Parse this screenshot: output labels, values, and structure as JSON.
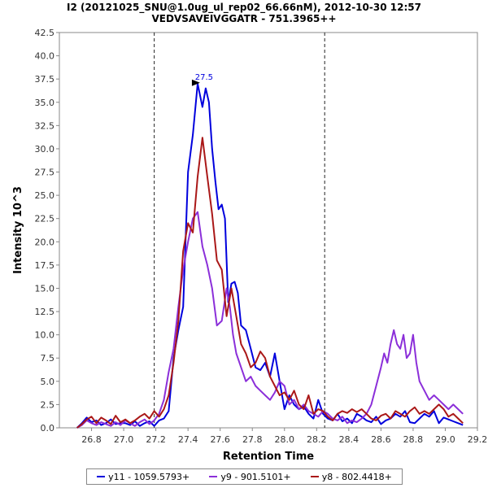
{
  "chart_data": {
    "type": "line",
    "title": "I2 (20121025_SNU@1.0ug_ul_rep02_66.66nM), 2012-10-30 12:57",
    "subtitle": "VEDVSAVEIVGGATR - 751.3965++",
    "xlabel": "Retention Time",
    "ylabel": "Intensity 10^3",
    "xlim": [
      26.6,
      29.2
    ],
    "ylim": [
      0,
      42.5
    ],
    "xticks": [
      "26.8",
      "27.0",
      "27.2",
      "27.4",
      "27.6",
      "27.8",
      "28.0",
      "28.2",
      "28.4",
      "28.6",
      "28.8",
      "29.0",
      "29.2"
    ],
    "yticks": [
      "0.0",
      "2.5",
      "5.0",
      "7.5",
      "10.0",
      "12.5",
      "15.0",
      "17.5",
      "20.0",
      "22.5",
      "25.0",
      "27.5",
      "30.0",
      "32.5",
      "35.0",
      "37.5",
      "40.0",
      "42.5"
    ],
    "boundaries": [
      27.19,
      28.25
    ],
    "peak_label": {
      "text": "27.5",
      "x": 27.5,
      "y": 37.1,
      "color": "#0000dd"
    },
    "series": [
      {
        "name": "y11 - 1059.5793+",
        "color": "#0000dd",
        "x": [
          26.71,
          26.74,
          26.77,
          26.8,
          26.83,
          26.86,
          26.89,
          26.92,
          26.95,
          26.98,
          27.01,
          27.04,
          27.07,
          27.1,
          27.13,
          27.16,
          27.19,
          27.22,
          27.25,
          27.28,
          27.31,
          27.34,
          27.37,
          27.4,
          27.43,
          27.46,
          27.49,
          27.51,
          27.53,
          27.55,
          27.57,
          27.59,
          27.61,
          27.63,
          27.65,
          27.67,
          27.69,
          27.71,
          27.73,
          27.76,
          27.79,
          27.82,
          27.85,
          27.88,
          27.91,
          27.94,
          27.97,
          28.0,
          28.03,
          28.06,
          28.09,
          28.12,
          28.15,
          28.18,
          28.21,
          28.24,
          28.27,
          28.3,
          28.33,
          28.36,
          28.39,
          28.42,
          28.45,
          28.48,
          28.51,
          28.54,
          28.57,
          28.6,
          28.63,
          28.66,
          28.69,
          28.72,
          28.75,
          28.78,
          28.81,
          28.84,
          28.87,
          28.9,
          28.93,
          28.96,
          28.99,
          29.02,
          29.05,
          29.08,
          29.11
        ],
        "values": [
          0.0,
          0.5,
          1.1,
          0.6,
          0.8,
          0.3,
          0.5,
          0.9,
          0.4,
          0.5,
          0.5,
          0.3,
          0.7,
          0.2,
          0.5,
          0.7,
          0.2,
          0.8,
          1.0,
          1.8,
          7.5,
          10.5,
          13.0,
          27.5,
          31.5,
          37.0,
          34.5,
          36.5,
          35.0,
          30.0,
          26.5,
          23.5,
          24.0,
          22.5,
          13.5,
          15.5,
          15.7,
          14.5,
          11.0,
          10.5,
          8.5,
          6.5,
          6.2,
          7.0,
          5.5,
          8.0,
          5.0,
          2.0,
          3.5,
          2.5,
          2.0,
          2.3,
          1.5,
          1.0,
          3.0,
          1.5,
          1.0,
          0.8,
          1.5,
          0.7,
          1.0,
          0.5,
          1.5,
          1.2,
          0.8,
          0.6,
          1.2,
          0.4,
          0.8,
          1.0,
          1.5,
          1.2,
          1.8,
          0.6,
          0.5,
          1.0,
          1.5,
          1.2,
          1.8,
          0.5,
          1.1,
          0.9,
          0.7,
          0.5,
          0.3
        ]
      },
      {
        "name": "y9 - 901.5101+",
        "color": "#8b2fd9",
        "x": [
          26.71,
          26.74,
          26.77,
          26.8,
          26.83,
          26.86,
          26.89,
          26.92,
          26.95,
          26.98,
          27.01,
          27.04,
          27.07,
          27.1,
          27.13,
          27.16,
          27.19,
          27.22,
          27.25,
          27.28,
          27.31,
          27.34,
          27.37,
          27.4,
          27.43,
          27.46,
          27.49,
          27.52,
          27.55,
          27.58,
          27.61,
          27.64,
          27.66,
          27.68,
          27.7,
          27.73,
          27.76,
          27.79,
          27.82,
          27.85,
          27.88,
          27.91,
          27.94,
          27.97,
          28.0,
          28.03,
          28.06,
          28.09,
          28.12,
          28.15,
          28.18,
          28.21,
          28.24,
          28.27,
          28.3,
          28.33,
          28.36,
          28.39,
          28.42,
          28.45,
          28.48,
          28.51,
          28.54,
          28.57,
          28.6,
          28.62,
          28.64,
          28.66,
          28.68,
          28.7,
          28.72,
          28.74,
          28.76,
          28.78,
          28.8,
          28.82,
          28.84,
          28.87,
          28.9,
          28.93,
          28.96,
          28.99,
          29.02,
          29.05,
          29.08,
          29.11
        ],
        "values": [
          0.0,
          0.3,
          0.8,
          0.5,
          0.3,
          0.6,
          0.4,
          0.2,
          0.6,
          0.3,
          0.8,
          0.5,
          0.2,
          0.6,
          0.9,
          0.4,
          0.8,
          1.5,
          3.0,
          6.0,
          8.5,
          13.0,
          17.0,
          20.0,
          22.5,
          23.2,
          19.5,
          17.5,
          15.0,
          11.0,
          11.5,
          15.0,
          13.0,
          10.0,
          8.0,
          6.5,
          5.0,
          5.5,
          4.5,
          4.0,
          3.5,
          3.0,
          3.8,
          5.0,
          4.5,
          2.5,
          3.0,
          2.0,
          2.5,
          1.8,
          1.5,
          1.2,
          1.8,
          1.5,
          1.0,
          0.8,
          1.2,
          0.5,
          0.8,
          0.6,
          1.0,
          1.5,
          2.5,
          4.5,
          6.5,
          8.0,
          7.0,
          9.0,
          10.5,
          9.0,
          8.5,
          10.0,
          7.5,
          8.0,
          10.0,
          7.0,
          5.0,
          4.0,
          3.0,
          3.5,
          3.0,
          2.5,
          2.0,
          2.5,
          2.0,
          1.5
        ]
      },
      {
        "name": "y8 - 802.4418+",
        "color": "#aa1818",
        "x": [
          26.71,
          26.74,
          26.77,
          26.8,
          26.83,
          26.86,
          26.89,
          26.92,
          26.95,
          26.98,
          27.01,
          27.04,
          27.07,
          27.1,
          27.13,
          27.16,
          27.19,
          27.22,
          27.25,
          27.28,
          27.31,
          27.34,
          27.37,
          27.4,
          27.43,
          27.46,
          27.49,
          27.52,
          27.55,
          27.58,
          27.61,
          27.64,
          27.67,
          27.7,
          27.73,
          27.76,
          27.79,
          27.82,
          27.85,
          27.88,
          27.91,
          27.94,
          27.97,
          28.0,
          28.03,
          28.06,
          28.09,
          28.12,
          28.15,
          28.18,
          28.21,
          28.24,
          28.27,
          28.3,
          28.33,
          28.36,
          28.39,
          28.42,
          28.45,
          28.48,
          28.51,
          28.54,
          28.57,
          28.6,
          28.63,
          28.66,
          28.69,
          28.72,
          28.75,
          28.78,
          28.81,
          28.84,
          28.87,
          28.9,
          28.93,
          28.96,
          28.99,
          29.02,
          29.05,
          29.08,
          29.11
        ],
        "values": [
          0.0,
          0.4,
          0.9,
          1.2,
          0.5,
          1.1,
          0.8,
          0.4,
          1.3,
          0.6,
          0.9,
          0.5,
          0.8,
          1.2,
          1.5,
          1.0,
          1.8,
          1.2,
          2.0,
          3.5,
          7.0,
          11.5,
          19.0,
          22.0,
          21.0,
          27.0,
          31.2,
          27.0,
          23.0,
          18.0,
          17.0,
          12.0,
          15.0,
          12.0,
          9.0,
          8.0,
          6.5,
          7.0,
          8.2,
          7.5,
          5.5,
          4.5,
          3.5,
          3.8,
          3.0,
          4.0,
          2.5,
          2.0,
          3.5,
          1.5,
          2.0,
          1.8,
          1.2,
          0.8,
          1.5,
          1.8,
          1.6,
          2.0,
          1.7,
          2.0,
          1.5,
          1.0,
          0.8,
          1.3,
          1.5,
          1.0,
          1.8,
          1.5,
          1.2,
          1.8,
          2.2,
          1.5,
          1.8,
          1.5,
          2.0,
          2.5,
          2.0,
          1.2,
          1.5,
          1.0,
          0.5
        ]
      }
    ]
  }
}
